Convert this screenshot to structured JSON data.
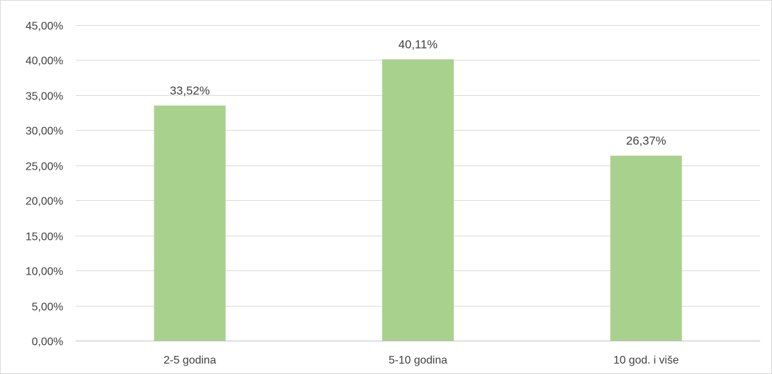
{
  "chart_data": {
    "type": "bar",
    "categories": [
      "2-5 godina",
      "5-10 godina",
      "10 god. i više"
    ],
    "values": [
      33.52,
      40.11,
      26.37
    ],
    "data_labels": [
      "33,52%",
      "40,11%",
      "26,37%"
    ],
    "y_tick_values": [
      0,
      5,
      10,
      15,
      20,
      25,
      30,
      35,
      40,
      45
    ],
    "y_tick_labels": [
      "0,00%",
      "5,00%",
      "10,00%",
      "15,00%",
      "20,00%",
      "25,00%",
      "30,00%",
      "35,00%",
      "40,00%",
      "45,00%"
    ],
    "ylim": [
      0,
      45
    ],
    "title": "",
    "xlabel": "",
    "ylabel": "",
    "grid": true,
    "legend": "none",
    "bar_color": "#a9d18e"
  }
}
